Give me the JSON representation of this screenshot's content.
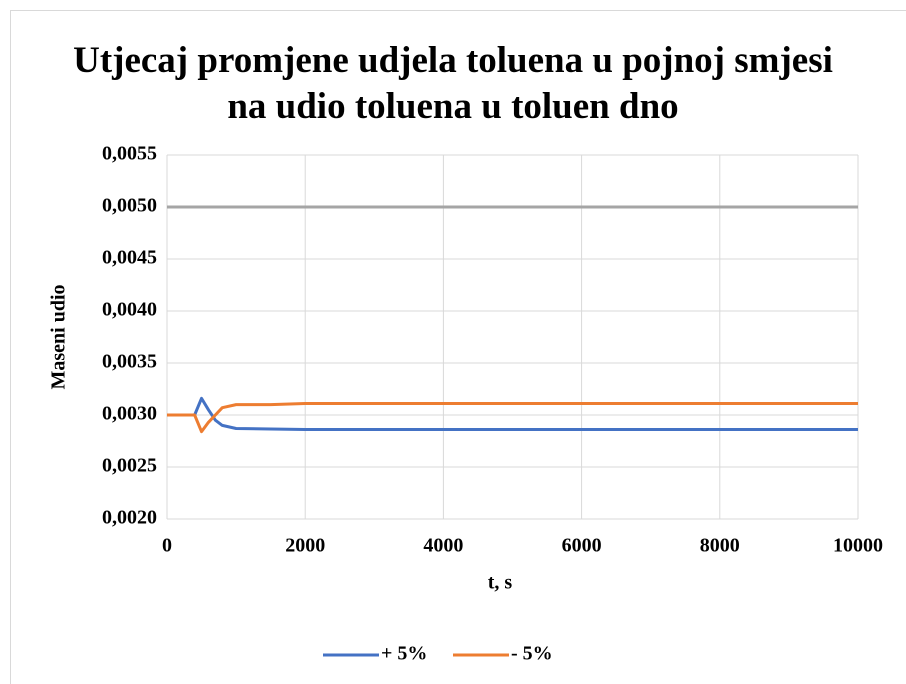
{
  "chart_data": {
    "type": "line",
    "title": "Utjecaj promjene udjela toluena u pojnoj smjesi na udio toluena u toluen dno",
    "xlabel": "t, s",
    "ylabel": "Maseni udio",
    "x": [
      0,
      400,
      500,
      600,
      700,
      800,
      1000,
      1500,
      2000,
      4000,
      6000,
      8000,
      10000
    ],
    "series": [
      {
        "name": "+ 5%",
        "color": "#4472c4",
        "values": [
          0.003,
          0.003,
          0.00316,
          0.00305,
          0.00295,
          0.0029,
          0.00287,
          0.002865,
          0.00286,
          0.00286,
          0.00286,
          0.00286,
          0.00286
        ]
      },
      {
        "name": "- 5%",
        "color": "#ed7d31",
        "values": [
          0.003,
          0.003,
          0.00284,
          0.00293,
          0.003,
          0.00307,
          0.0031,
          0.0031,
          0.00311,
          0.00311,
          0.00311,
          0.00311,
          0.00311
        ]
      },
      {
        "color": "#a5a5a5",
        "x": [
          0,
          10000
        ],
        "values": [
          0.005,
          0.005
        ]
      }
    ],
    "xlim": [
      0,
      10000
    ],
    "xticks": [
      0,
      2000,
      4000,
      6000,
      8000,
      10000
    ],
    "ylim": [
      0.002,
      0.0055
    ],
    "yticks": [
      {
        "value": 0.002,
        "label": "0,0020"
      },
      {
        "value": 0.0025,
        "label": "0,0025"
      },
      {
        "value": 0.003,
        "label": "0,0030"
      },
      {
        "value": 0.0035,
        "label": "0,0035"
      },
      {
        "value": 0.004,
        "label": "0,0040"
      },
      {
        "value": 0.0045,
        "label": "0,0045"
      },
      {
        "value": 0.005,
        "label": "0,0050"
      },
      {
        "value": 0.0055,
        "label": "0,0055"
      }
    ],
    "grid": true,
    "legend": "bottom"
  }
}
